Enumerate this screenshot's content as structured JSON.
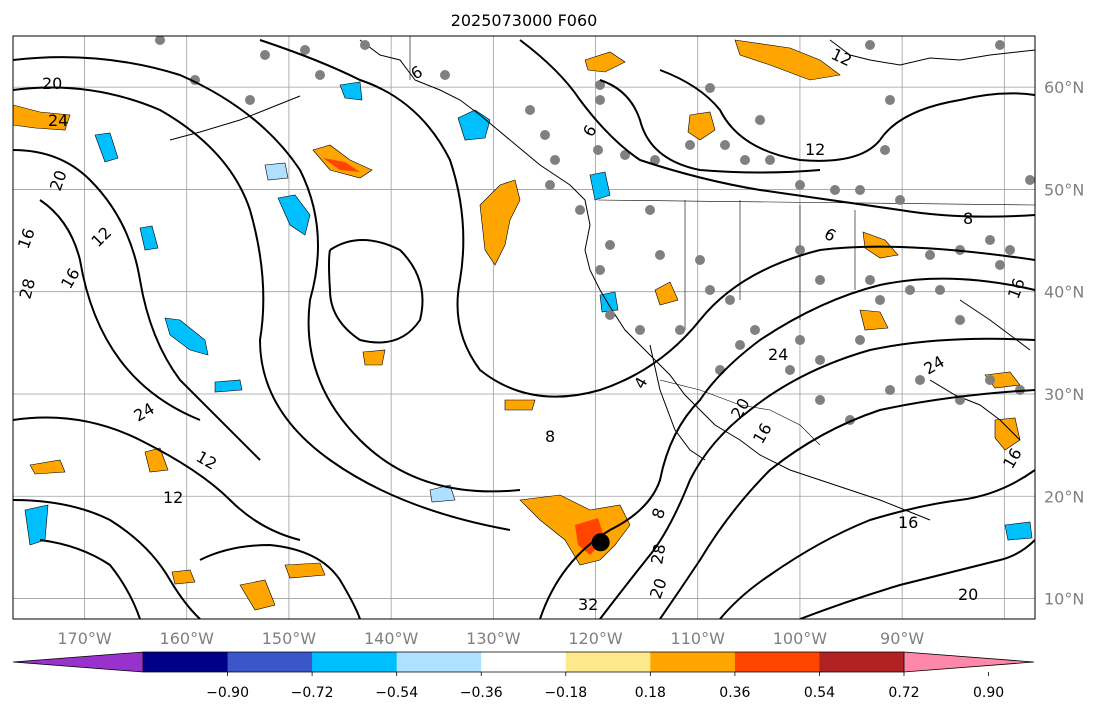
{
  "map": {
    "title": "2025073000 F060",
    "lat_labels": [
      "60°N",
      "50°N",
      "40°N",
      "30°N",
      "20°N",
      "10°N"
    ],
    "lon_labels": [
      "170°W",
      "160°W",
      "150°W",
      "140°W",
      "130°W",
      "120°W",
      "110°W",
      "100°W",
      "90°W"
    ],
    "extent": {
      "lon_min": -177,
      "lon_max": -77,
      "lat_min": 8,
      "lat_max": 65
    },
    "contour_labels": [
      "20",
      "24",
      "20",
      "16",
      "12",
      "28",
      "16",
      "24",
      "12",
      "12",
      "8",
      "4",
      "20",
      "16",
      "24",
      "24",
      "28",
      "32",
      "12",
      "6",
      "12",
      "8",
      "16",
      "20",
      "16",
      "8",
      "20",
      "16",
      "6",
      "6"
    ],
    "marker": {
      "name": "storm-marker",
      "lon": -119.5,
      "lat": 15.5
    },
    "colors": {
      "contour": "#000000",
      "grid": "#9e9e9e",
      "land": "#000000",
      "station": "#808080"
    }
  },
  "colorbar": {
    "tick_labels": [
      "−0.90",
      "−0.72",
      "−0.54",
      "−0.36",
      "−0.18",
      "0.18",
      "0.36",
      "0.54",
      "0.72",
      "0.90"
    ],
    "colors": [
      "#9932cc",
      "#00008b",
      "#3a56c8",
      "#00bfff",
      "#b0e0ff",
      "#ffffff",
      "#fde98b",
      "#ffa500",
      "#ff4500",
      "#b22222",
      "#ff88aa"
    ]
  }
}
